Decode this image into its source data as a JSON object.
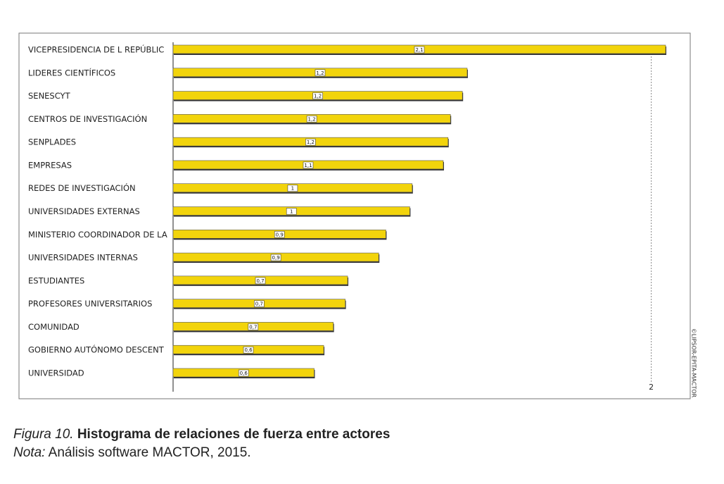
{
  "chart_data": {
    "type": "bar",
    "orientation": "horizontal",
    "categories": [
      "VICEPRESIDENCIA DE L REPÚBLIC",
      "LIDERES CIENTÍFICOS",
      "SENESCYT",
      "CENTROS DE INVESTIGACIÓN",
      "SENPLADES",
      "EMPRESAS",
      "REDES DE INVESTIGACIÓN",
      "UNIVERSIDADES EXTERNAS",
      "MINISTERIO COORDINADOR DE LA",
      "UNIVERSIDADES INTERNAS",
      "ESTUDIANTES",
      "PROFESORES UNIVERSITARIOS",
      "COMUNIDAD",
      "GOBIERNO AUTÓNOMO DESCENT",
      "UNIVERSIDAD"
    ],
    "values": [
      2.06,
      1.23,
      1.21,
      1.16,
      1.15,
      1.13,
      1.0,
      0.99,
      0.89,
      0.86,
      0.73,
      0.72,
      0.67,
      0.63,
      0.59
    ],
    "value_labels": [
      "2,1",
      "1,2",
      "1,2",
      "1,2",
      "1,2",
      "1,1",
      "1",
      "1",
      "0,9",
      "0,9",
      "0,7",
      "0,7",
      "0,7",
      "0,6",
      "0,6"
    ],
    "color": "#f2d40c",
    "xlim": [
      0,
      2.16
    ],
    "xticks": [
      2
    ],
    "grid": true,
    "watermark": "©LIPSOR-EPITA-MACTOR"
  },
  "caption": {
    "label": "Figura 10.",
    "text": "Histograma de relaciones de fuerza entre actores"
  },
  "note": {
    "label": "Nota:",
    "text": "Análisis software MACTOR, 2015."
  }
}
